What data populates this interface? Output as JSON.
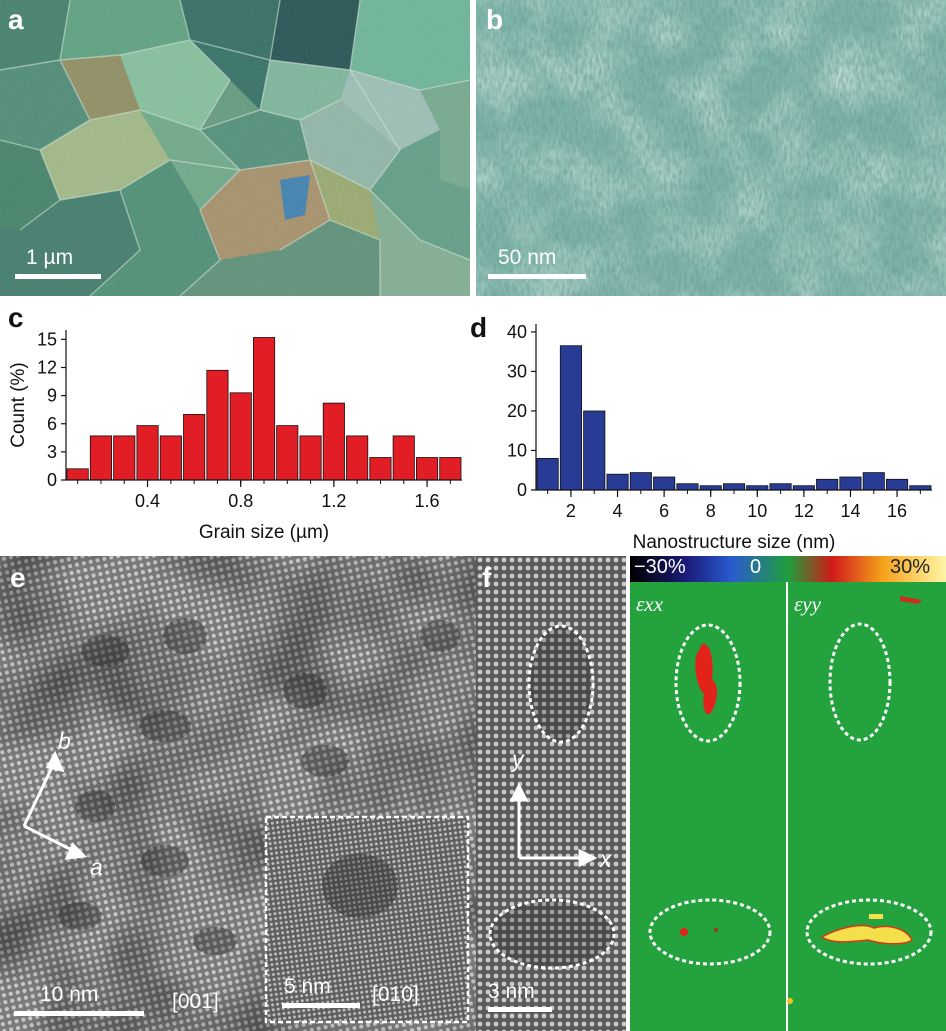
{
  "panels": {
    "a": {
      "letter": "a",
      "scale_label": "1 µm"
    },
    "b": {
      "letter": "b",
      "scale_label": "50 nm"
    },
    "c": {
      "letter": "c"
    },
    "d": {
      "letter": "d"
    },
    "e": {
      "letter": "e",
      "scale_label": "10 nm",
      "zone_axis": "[001]",
      "inset_scale_label": "5 nm",
      "inset_zone_axis": "[010]",
      "axis_b": "b",
      "axis_a": "a"
    },
    "f": {
      "letter": "f",
      "scale_label": "3 nm",
      "axis_y": "y",
      "axis_x": "x",
      "colorbar": {
        "min_label": "−30%",
        "mid_label": "0",
        "max_label": "30%"
      },
      "map1_label": "εxx",
      "map2_label": "εyy"
    }
  },
  "colors": {
    "bar_red": "#e11e26",
    "bar_blue": "#283c96",
    "strain_bg": "#23a23e"
  },
  "chart_data": [
    {
      "type": "bar",
      "panel": "c",
      "xlabel": "Grain size (µm)",
      "ylabel": "Count (%)",
      "x": [
        0.1,
        0.2,
        0.3,
        0.4,
        0.5,
        0.6,
        0.7,
        0.8,
        0.9,
        1.0,
        1.1,
        1.2,
        1.3,
        1.4,
        1.5,
        1.6,
        1.7
      ],
      "values": [
        1.2,
        4.7,
        4.7,
        5.8,
        4.7,
        7.0,
        11.7,
        9.3,
        15.2,
        5.8,
        4.7,
        8.2,
        4.7,
        2.4,
        4.7,
        2.4,
        2.4
      ],
      "xticks": [
        "0.4",
        "0.8",
        "1.2",
        "1.6"
      ],
      "xtick_values": [
        0.4,
        0.8,
        1.2,
        1.6
      ],
      "yticks": [
        "0",
        "3",
        "6",
        "9",
        "12",
        "15"
      ],
      "xlim": [
        0.05,
        1.75
      ],
      "ylim": [
        0,
        16
      ]
    },
    {
      "type": "bar",
      "panel": "d",
      "xlabel": "Nanostructure size (nm)",
      "ylabel": "",
      "x": [
        1,
        2,
        3,
        4,
        5,
        6,
        7,
        8,
        9,
        10,
        11,
        12,
        13,
        14,
        15,
        16,
        17
      ],
      "values": [
        8,
        36.5,
        20,
        4,
        4.4,
        3.3,
        1.6,
        1.1,
        1.6,
        1.1,
        1.6,
        1.1,
        2.7,
        3.3,
        4.4,
        2.7,
        1.1
      ],
      "xticks": [
        "2",
        "4",
        "6",
        "8",
        "10",
        "12",
        "14",
        "16"
      ],
      "xtick_values": [
        2,
        4,
        6,
        8,
        10,
        12,
        14,
        16
      ],
      "yticks": [
        "0",
        "10",
        "20",
        "30",
        "40"
      ],
      "xlim": [
        0.5,
        17.5
      ],
      "ylim": [
        0,
        42
      ]
    }
  ]
}
